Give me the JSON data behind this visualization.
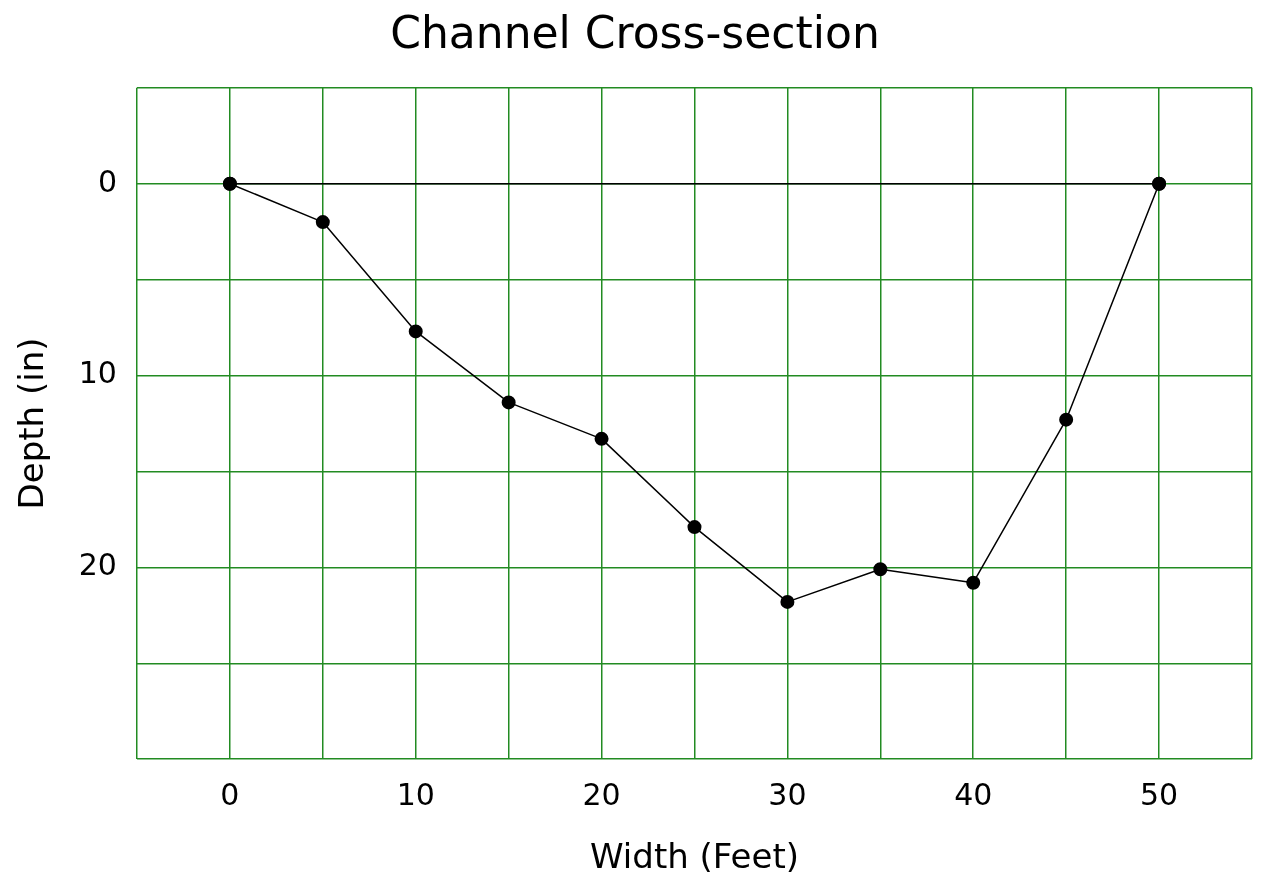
{
  "chart_data": {
    "type": "line",
    "title": "Channel Cross-section",
    "xlabel": "Width (Feet)",
    "ylabel": "Depth (in)",
    "x": [
      0,
      5,
      10,
      15,
      20,
      25,
      30,
      35,
      40,
      45,
      50
    ],
    "series": [
      {
        "color": "#000000",
        "values": [
          0,
          2.0,
          7.7,
          11.4,
          13.3,
          17.9,
          21.8,
          20.1,
          20.8,
          12.3,
          0
        ]
      },
      {
        "color": "#000000",
        "x": [
          0,
          50
        ],
        "values": [
          0,
          0
        ]
      }
    ],
    "xlim": [
      -5,
      55
    ],
    "ylim": [
      30,
      -5
    ],
    "xticks": [
      {
        "value": -5,
        "label": null
      },
      0,
      {
        "value": 5,
        "label": null
      },
      10,
      {
        "value": 15,
        "label": null
      },
      20,
      {
        "value": 25,
        "label": null
      },
      30,
      {
        "value": 35,
        "label": null
      },
      40,
      {
        "value": 45,
        "label": null
      },
      50,
      {
        "value": 55,
        "label": null
      }
    ],
    "yticks": [
      {
        "value": -5,
        "label": null
      },
      0,
      {
        "value": 5,
        "label": null
      },
      10,
      {
        "value": 15,
        "label": null
      },
      20,
      {
        "value": 25,
        "label": null
      },
      {
        "value": 30,
        "label": null
      }
    ],
    "grid": true,
    "legend": false,
    "marker": "circle",
    "line_style": "solid"
  }
}
